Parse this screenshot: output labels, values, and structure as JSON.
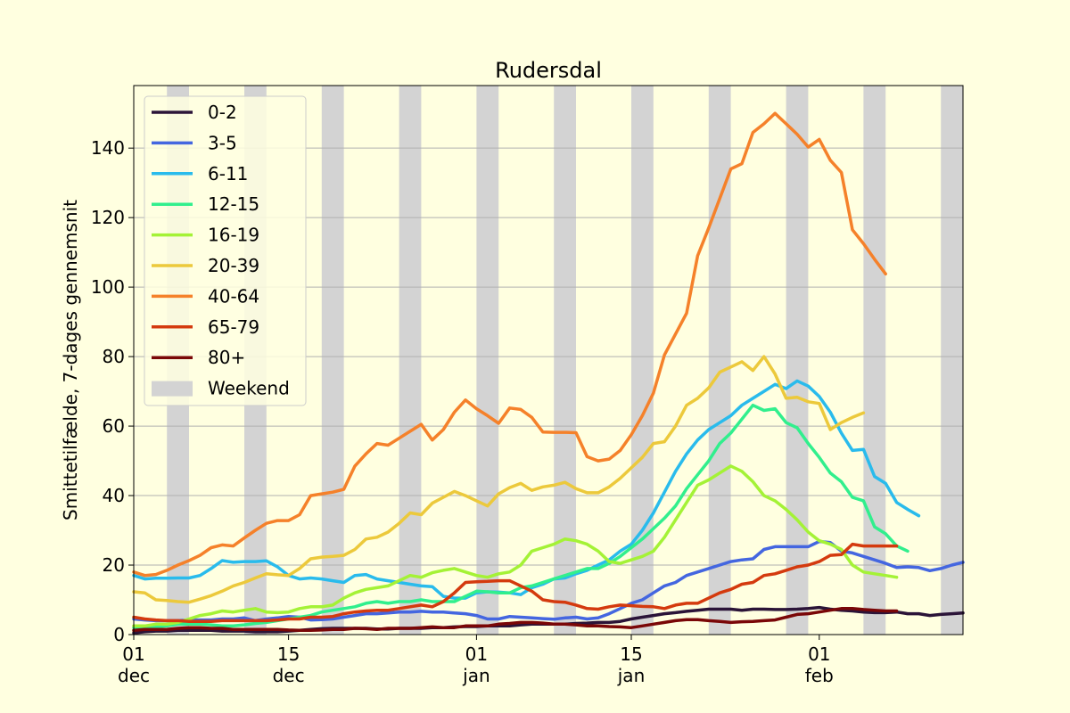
{
  "chart_data": {
    "type": "line",
    "title": "Rudersdal",
    "ylabel": "Smittetilfælde, 7-dages gennemsnit",
    "xlabel": "",
    "ylim": [
      0,
      158
    ],
    "xlim": [
      "2021-12-01",
      "2022-02-14"
    ],
    "grid": "horizontal",
    "legend_position": "top-left",
    "yticks": [
      0,
      20,
      40,
      60,
      80,
      100,
      120,
      140
    ],
    "xticks": [
      {
        "date": "2021-12-01",
        "day": "01",
        "month": "dec"
      },
      {
        "date": "2021-12-15",
        "day": "15",
        "month": "dec"
      },
      {
        "date": "2022-01-01",
        "day": "01",
        "month": "jan"
      },
      {
        "date": "2022-01-15",
        "day": "15",
        "month": "jan"
      },
      {
        "date": "2022-02-01",
        "day": "01",
        "month": "feb"
      }
    ],
    "weekend_label": "Weekend",
    "weekend_color": "#d3d3d3",
    "weekends": [
      [
        "2021-12-04",
        "2021-12-05"
      ],
      [
        "2021-12-11",
        "2021-12-12"
      ],
      [
        "2021-12-18",
        "2021-12-19"
      ],
      [
        "2021-12-25",
        "2021-12-26"
      ],
      [
        "2022-01-01",
        "2022-01-02"
      ],
      [
        "2022-01-08",
        "2022-01-09"
      ],
      [
        "2022-01-15",
        "2022-01-16"
      ],
      [
        "2022-01-22",
        "2022-01-23"
      ],
      [
        "2022-01-29",
        "2022-01-30"
      ],
      [
        "2022-02-05",
        "2022-02-06"
      ],
      [
        "2022-02-12",
        "2022-02-13"
      ]
    ],
    "start_date": "2021-12-01",
    "series": [
      {
        "name": "0-2",
        "color": "#2b1438",
        "values": [
          0.5,
          0.8,
          1,
          1,
          1.2,
          1.2,
          1.2,
          1.2,
          1,
          1,
          1,
          0.8,
          0.8,
          0.8,
          1,
          1.2,
          1.5,
          1.7,
          1.8,
          1.8,
          1.8,
          1.8,
          1.6,
          1.6,
          1.8,
          1.8,
          1.8,
          2,
          2,
          2.2,
          2.3,
          2.3,
          2.5,
          2.5,
          2.5,
          2.8,
          3,
          3,
          3,
          3,
          3.2,
          3.3,
          3.5,
          3.5,
          3.8,
          4.5,
          5,
          5.5,
          6,
          6.3,
          6.7,
          7,
          7.3,
          7.3,
          7.3,
          7,
          7.3,
          7.3,
          7.2,
          7.2,
          7.3,
          7.5,
          7.8,
          7.3,
          7,
          6.8,
          6.5,
          6.3,
          6.3,
          6.5,
          6,
          6,
          5.5,
          5.8,
          6,
          6.2
        ]
      },
      {
        "name": "3-5",
        "color": "#4466e0",
        "values": [
          4.5,
          4.2,
          4,
          4,
          4,
          4.2,
          4.2,
          4.2,
          4.5,
          4.5,
          4.8,
          4,
          4.5,
          4.8,
          5.2,
          5,
          4.2,
          4.3,
          4.5,
          5,
          5.5,
          6,
          6,
          6.2,
          6.5,
          6.5,
          6.7,
          6.5,
          6.5,
          6.2,
          6,
          5.5,
          4.5,
          4.5,
          5.2,
          5,
          4.8,
          4.6,
          4.4,
          4.8,
          5,
          4.5,
          4.8,
          6,
          7.5,
          9,
          10,
          12,
          14,
          15,
          17,
          18,
          19,
          20,
          21,
          21.5,
          21.8,
          24.5,
          25.3,
          25.3,
          25.3,
          25.3,
          26.8,
          26.5,
          24,
          23.5,
          22.5,
          21.5,
          20.5,
          19.3,
          19.5,
          19.3,
          18.4,
          19,
          20,
          20.8
        ]
      },
      {
        "name": "6-11",
        "color": "#29bbec",
        "values": [
          17,
          16,
          16.2,
          16.2,
          16.3,
          16.3,
          17,
          19,
          21.3,
          20.8,
          21,
          21,
          21.2,
          19.5,
          17,
          16,
          16.3,
          16,
          15.5,
          15,
          17,
          17.3,
          16,
          15.5,
          15,
          14.5,
          14,
          13.8,
          11,
          10.5,
          10.5,
          12,
          12.3,
          12.2,
          12,
          11.5,
          13.5,
          14.5,
          16,
          16.3,
          17.5,
          18.5,
          20,
          21.5,
          24,
          26,
          30,
          35,
          41,
          47,
          52,
          56,
          59,
          61,
          63,
          66,
          68,
          70,
          72,
          70.8,
          73,
          71.5,
          68.5,
          64,
          58,
          53,
          53.3,
          45.5,
          43.5,
          38,
          36,
          34.2
        ]
      },
      {
        "name": "12-15",
        "color": "#31ef8d",
        "values": [
          2,
          2,
          2.2,
          2.5,
          3,
          3,
          3,
          2.8,
          2.5,
          2.5,
          2.8,
          3.2,
          3.5,
          4,
          4.5,
          5,
          5.5,
          6.5,
          7,
          7.5,
          8,
          9,
          9.5,
          9,
          9.5,
          9.5,
          10,
          9.5,
          9.5,
          9.5,
          11,
          12.5,
          12.3,
          12,
          12,
          13.5,
          14,
          15,
          16,
          17,
          18,
          19,
          19,
          20.5,
          22.5,
          25,
          27.5,
          30.5,
          33.5,
          37,
          42,
          46,
          50,
          55,
          58,
          62,
          66,
          64.5,
          65,
          61,
          59.5,
          55,
          51,
          46.5,
          44,
          39.5,
          38.5,
          31,
          29,
          25.5,
          24
        ]
      },
      {
        "name": "16-19",
        "color": "#a4f236",
        "values": [
          2.5,
          2.5,
          3,
          3,
          3.5,
          4.5,
          5.5,
          6,
          6.8,
          6.5,
          7,
          7.5,
          6.5,
          6.3,
          6.5,
          7.5,
          8,
          8,
          8.5,
          10.5,
          12,
          13,
          13.5,
          14,
          15.5,
          17,
          16.5,
          17.8,
          18.5,
          19,
          18,
          17,
          16.5,
          17.5,
          18,
          20,
          24,
          25,
          26,
          27.5,
          27,
          26,
          24,
          21,
          20.5,
          21.5,
          22.5,
          24,
          28,
          33,
          38,
          43,
          44.5,
          46.5,
          48.5,
          47,
          44,
          40,
          38.5,
          36,
          33,
          29.5,
          27,
          26,
          24.5,
          20,
          18,
          17.5,
          17,
          16.5
        ]
      },
      {
        "name": "20-39",
        "color": "#ecc93b",
        "values": [
          12.3,
          12,
          10,
          9.8,
          9.5,
          9.3,
          10.2,
          11.2,
          12.5,
          14,
          15,
          16.3,
          17.5,
          17.2,
          17,
          19,
          21.8,
          22.3,
          22.5,
          22.8,
          24.5,
          27.5,
          28,
          29.5,
          32,
          35,
          34.5,
          37.8,
          39.5,
          41.2,
          40,
          38.5,
          37,
          40.5,
          42.3,
          43.5,
          41.5,
          42.5,
          43,
          43.8,
          42,
          40.8,
          40.8,
          42.5,
          45,
          48,
          51,
          55,
          55.5,
          60,
          66,
          68,
          71,
          75.5,
          77,
          78.5,
          76,
          80,
          75,
          68,
          68.3,
          67,
          66.5,
          59,
          61,
          62.5,
          63.8
        ]
      },
      {
        "name": "40-64",
        "color": "#f5812a",
        "values": [
          18,
          17,
          17.3,
          18.5,
          20,
          21.3,
          22.8,
          25,
          25.8,
          25.5,
          27.8,
          30,
          32,
          32.8,
          32.8,
          34.5,
          40,
          40.5,
          41,
          41.8,
          48.5,
          52,
          55,
          54.5,
          56.5,
          58.5,
          60.5,
          56,
          59,
          64,
          67.5,
          65,
          63,
          60.8,
          65.2,
          64.8,
          62.5,
          58.3,
          58.2,
          58.2,
          58.1,
          51.2,
          50,
          50.5,
          53,
          57.5,
          63,
          69.5,
          80.5,
          86.5,
          92.5,
          109,
          117,
          125.5,
          134,
          135.5,
          144.5,
          147,
          150,
          147,
          144,
          140.3,
          142.5,
          136.5,
          133,
          116.5,
          112.5,
          108,
          103.8
        ]
      },
      {
        "name": "65-79",
        "color": "#d43a0e",
        "values": [
          5,
          4.5,
          4.2,
          4,
          4,
          3.8,
          3.8,
          3.8,
          4,
          4,
          4,
          4,
          4,
          4.2,
          4.5,
          4.5,
          5,
          5,
          5.2,
          6,
          6.5,
          6.8,
          7,
          7,
          7.5,
          8,
          8.5,
          8,
          9.5,
          12,
          15,
          15.2,
          15.3,
          15.5,
          15.5,
          14,
          12.5,
          10,
          9.5,
          9.3,
          8.5,
          7.5,
          7.3,
          8,
          8.5,
          8.3,
          8.1,
          8,
          7.5,
          8.5,
          9,
          9,
          10.5,
          12,
          13,
          14.5,
          15,
          17,
          17.5,
          18.5,
          19.5,
          20,
          21,
          22.8,
          23,
          26,
          25.5,
          25.5,
          25.5,
          25.5
        ]
      },
      {
        "name": "80+",
        "color": "#7a0707",
        "values": [
          1.2,
          1.5,
          1.5,
          1.5,
          1.8,
          2,
          2,
          1.8,
          1.8,
          1.5,
          1.5,
          1.5,
          1.5,
          1.5,
          1.3,
          1.2,
          1.2,
          1.3,
          1.5,
          1.5,
          1.8,
          1.7,
          1.5,
          1.8,
          1.8,
          1.8,
          2,
          2.2,
          2,
          2,
          2.5,
          2.5,
          2.5,
          3,
          3.2,
          3.5,
          3.5,
          3.3,
          3,
          3,
          2.8,
          2.5,
          2.5,
          2.3,
          2.2,
          2,
          2.5,
          3,
          3.5,
          4,
          4.3,
          4.3,
          4,
          3.8,
          3.5,
          3.7,
          3.8,
          4,
          4.2,
          5,
          5.8,
          6,
          6.5,
          7,
          7.5,
          7.5,
          7.2,
          7,
          6.8,
          6.8
        ]
      }
    ]
  }
}
